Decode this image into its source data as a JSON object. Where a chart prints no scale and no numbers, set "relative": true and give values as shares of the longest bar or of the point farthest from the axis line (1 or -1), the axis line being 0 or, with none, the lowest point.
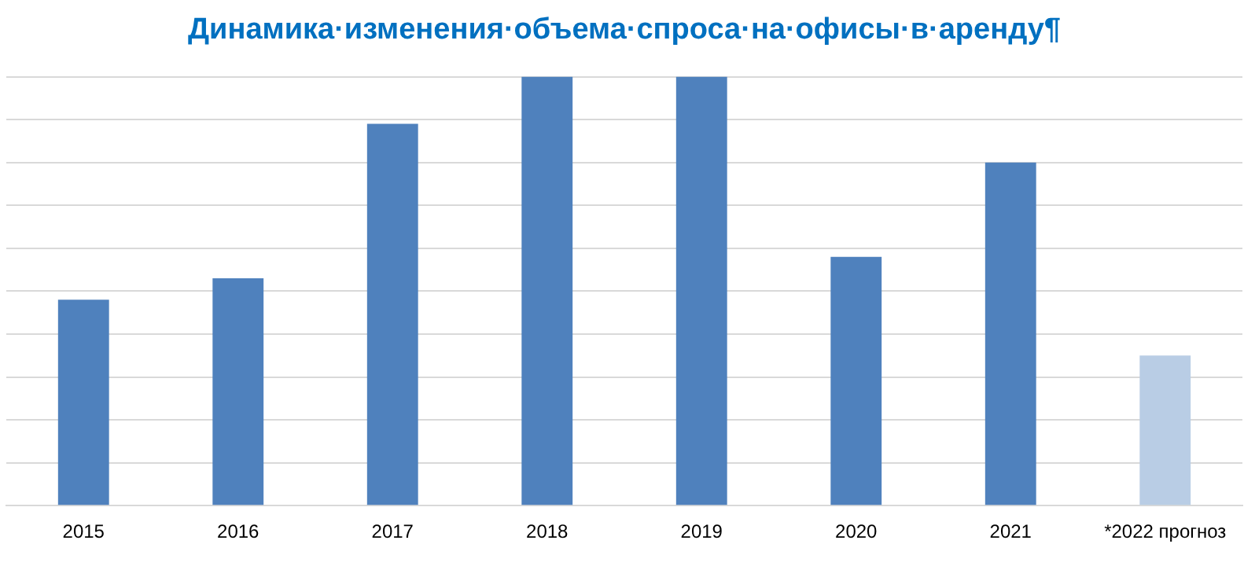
{
  "chart_data": {
    "type": "bar",
    "title": "Динамика·изменения·объема·спроса·на·офисы·в·аренду¶",
    "relative": true,
    "grid": "y",
    "categories": [
      "2015",
      "2016",
      "2017",
      "2018",
      "2019",
      "2020",
      "2021",
      "*2022 прогноз"
    ],
    "values": [
      0.48,
      0.53,
      0.89,
      1.0,
      1.0,
      0.58,
      0.8,
      0.35
    ],
    "colors": [
      "#4f81bd",
      "#4f81bd",
      "#4f81bd",
      "#4f81bd",
      "#4f81bd",
      "#4f81bd",
      "#4f81bd",
      "#b9cde5"
    ]
  }
}
